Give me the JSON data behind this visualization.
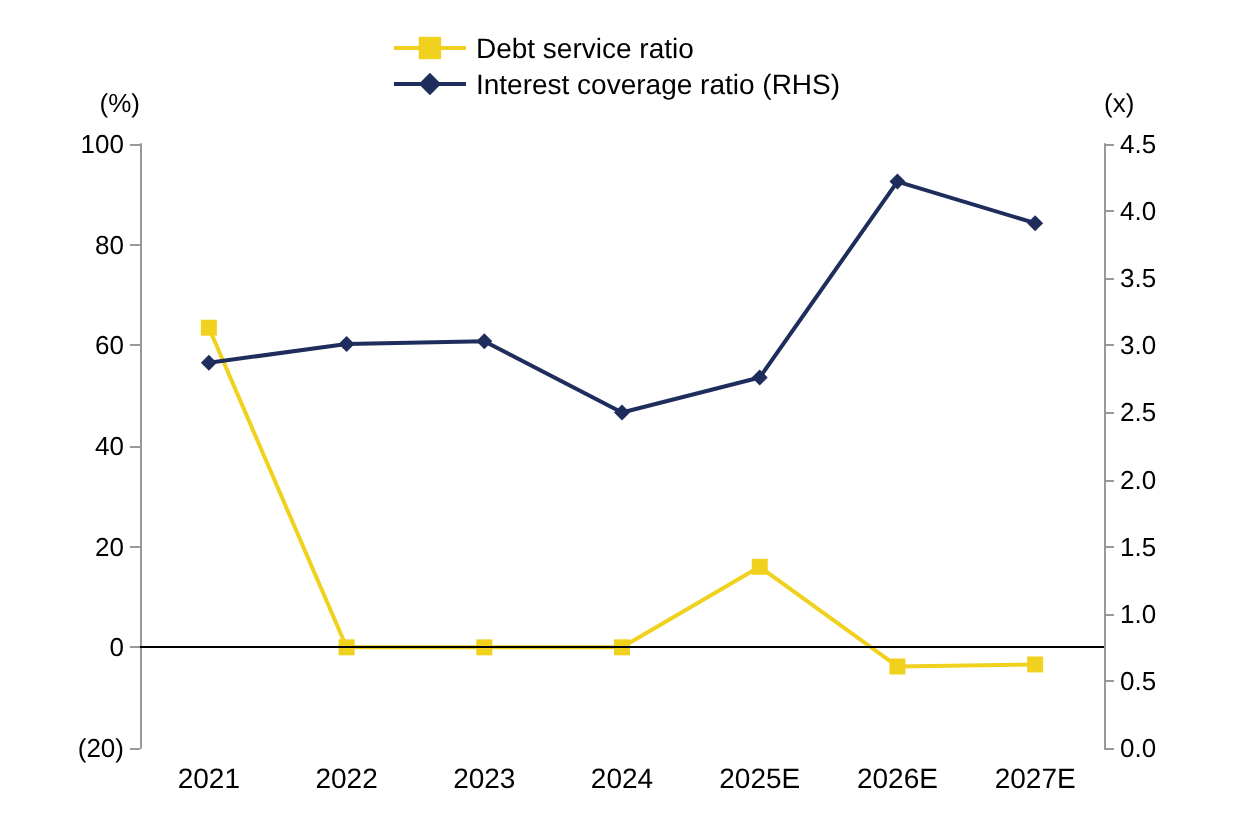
{
  "chart_data": {
    "type": "line",
    "categories": [
      "2021",
      "2022",
      "2023",
      "2024",
      "2025E",
      "2026E",
      "2027E"
    ],
    "ylabel": "(%)",
    "y2label": "(x)",
    "ylim": [
      -20,
      100
    ],
    "yticks": [
      {
        "value": -20,
        "label": "(20)"
      },
      0,
      20,
      40,
      60,
      80,
      100
    ],
    "y2lim": [
      0,
      4.5
    ],
    "y2ticks": [
      {
        "value": 0,
        "label": "0.0"
      },
      0.5,
      {
        "value": 1,
        "label": "1.0"
      },
      1.5,
      {
        "value": 2,
        "label": "2.0"
      },
      2.5,
      {
        "value": 3,
        "label": "3.0"
      },
      3.5,
      {
        "value": 4,
        "label": "4.0"
      },
      4.5
    ],
    "series": [
      {
        "name": "Debt service ratio",
        "color": "#f0d21e",
        "marker": "square",
        "values": [
          63.5,
          0,
          0,
          0,
          16,
          -3.8,
          -3.4
        ]
      },
      {
        "name": "Interest coverage ratio (RHS)",
        "color": "#1f2d5c",
        "marker": "diamond",
        "axis": "y2",
        "values": [
          2.87,
          3.01,
          3.03,
          2.5,
          2.76,
          4.22,
          3.91
        ]
      }
    ],
    "ref_lines": [
      {
        "axis": "y",
        "value": 0,
        "color": "#000000"
      }
    ],
    "grid": false,
    "legend": "top",
    "line_style": "solid"
  }
}
